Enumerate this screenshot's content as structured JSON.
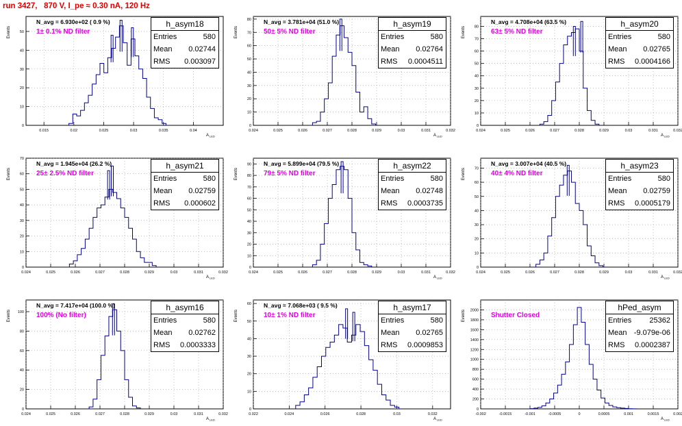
{
  "header": {
    "run_title": "run 3427,   870 V, I_pe ≈ 0.30 nA, 120 Hz"
  },
  "common": {
    "ylabel": "Events",
    "xlabel": "A",
    "xlabel_sub": "LED",
    "hist_color": "#00008b",
    "annot_color": "#e000e0",
    "title_color": "#e00000"
  },
  "chart_data": [
    {
      "type": "histogram",
      "name": "h_asym18",
      "entries": "580",
      "mean": "0.02744",
      "rms": "0.003097",
      "navg": "N_avg = 6.930e+02 ( 0.9 %)",
      "filter": "1± 0.1% ND filter",
      "xlim": [
        0.012,
        0.045
      ],
      "ylim": [
        0,
        58
      ],
      "xticks": [
        0.015,
        0.02,
        0.025,
        0.03,
        0.035,
        0.04
      ],
      "xtick_labels": [
        "0.015",
        "0.02",
        "0.025",
        "0.03",
        "0.035",
        "0.04"
      ],
      "yticks": [
        0,
        10,
        20,
        30,
        40,
        50
      ],
      "ytick_labels": [
        "0",
        "10",
        "20",
        "30",
        "40",
        "50"
      ],
      "bin_width": 0.00065,
      "bins": [
        [
          0.0195,
          1
        ],
        [
          0.02015,
          6
        ],
        [
          0.0208,
          5
        ],
        [
          0.02145,
          8
        ],
        [
          0.0221,
          12
        ],
        [
          0.02275,
          16
        ],
        [
          0.0234,
          22
        ],
        [
          0.02405,
          27
        ],
        [
          0.0247,
          33
        ],
        [
          0.02535,
          28
        ],
        [
          0.026,
          36
        ],
        [
          0.02665,
          41
        ],
        [
          0.0273,
          47
        ],
        [
          0.02795,
          53
        ],
        [
          0.0286,
          44
        ],
        [
          0.02925,
          32
        ],
        [
          0.0299,
          46
        ],
        [
          0.03055,
          37
        ],
        [
          0.0312,
          30
        ],
        [
          0.03185,
          25
        ],
        [
          0.0325,
          15
        ],
        [
          0.03315,
          9
        ],
        [
          0.0338,
          4
        ],
        [
          0.03445,
          3
        ],
        [
          0.0351,
          1
        ]
      ],
      "spikes": [
        [
          0.0264,
          48
        ],
        [
          0.0279,
          56
        ],
        [
          0.0298,
          52
        ]
      ]
    },
    {
      "type": "histogram",
      "name": "h_asym19",
      "entries": "580",
      "mean": "0.02764",
      "rms": "0.0004511",
      "navg": "N_avg = 3.781e+04 (51.0 %)",
      "filter": "50± 5% ND filter",
      "xlim": [
        0.024,
        0.032
      ],
      "ylim": [
        0,
        82
      ],
      "xticks": [
        0.024,
        0.025,
        0.026,
        0.027,
        0.028,
        0.029,
        0.03,
        0.031,
        0.032
      ],
      "xtick_labels": [
        "0.024",
        "0.025",
        "0.026",
        "0.027",
        "0.028",
        "0.029",
        "0.03",
        "0.031",
        "0.032"
      ],
      "yticks": [
        0,
        10,
        20,
        30,
        40,
        50,
        60,
        70,
        80
      ],
      "ytick_labels": [
        "0",
        "10",
        "20",
        "30",
        "40",
        "50",
        "60",
        "70",
        "80"
      ],
      "bin_width": 0.00016,
      "bins": [
        [
          0.02648,
          2
        ],
        [
          0.02664,
          3
        ],
        [
          0.0268,
          10
        ],
        [
          0.02696,
          20
        ],
        [
          0.02712,
          32
        ],
        [
          0.02728,
          52
        ],
        [
          0.02744,
          68
        ],
        [
          0.0276,
          75
        ],
        [
          0.02776,
          66
        ],
        [
          0.02792,
          55
        ],
        [
          0.02808,
          45
        ],
        [
          0.02824,
          25
        ],
        [
          0.0284,
          10
        ],
        [
          0.02856,
          14
        ],
        [
          0.02872,
          5
        ],
        [
          0.02888,
          1
        ]
      ],
      "spikes": [
        [
          0.02755,
          80
        ]
      ]
    },
    {
      "type": "histogram",
      "name": "h_asym20",
      "entries": "580",
      "mean": "0.02765",
      "rms": "0.0004166",
      "navg": "N_avg = 4.708e+04 (63.5 %)",
      "filter": "63± 5% ND filter",
      "xlim": [
        0.024,
        0.032
      ],
      "ylim": [
        0,
        88
      ],
      "xticks": [
        0.024,
        0.025,
        0.026,
        0.027,
        0.028,
        0.029,
        0.03,
        0.031,
        0.032
      ],
      "xtick_labels": [
        "0.024",
        "0.025",
        "0.026",
        "0.027",
        "0.028",
        "0.029",
        "0.03",
        "0.031",
        "0.032"
      ],
      "yticks": [
        0,
        10,
        20,
        30,
        40,
        50,
        60,
        70,
        80
      ],
      "ytick_labels": [
        "0",
        "10",
        "20",
        "30",
        "40",
        "50",
        "60",
        "70",
        "80"
      ],
      "bin_width": 0.00016,
      "bins": [
        [
          0.02648,
          1
        ],
        [
          0.02664,
          3
        ],
        [
          0.0268,
          8
        ],
        [
          0.02696,
          20
        ],
        [
          0.02712,
          35
        ],
        [
          0.02728,
          50
        ],
        [
          0.02744,
          65
        ],
        [
          0.0276,
          72
        ],
        [
          0.02776,
          75
        ],
        [
          0.02792,
          78
        ],
        [
          0.02808,
          60
        ],
        [
          0.02824,
          30
        ],
        [
          0.0284,
          12
        ],
        [
          0.02856,
          4
        ],
        [
          0.02872,
          1
        ]
      ],
      "spikes": [
        [
          0.0278,
          80
        ],
        [
          0.0281,
          84
        ]
      ]
    },
    {
      "type": "histogram",
      "name": "h_asym21",
      "entries": "580",
      "mean": "0.02759",
      "rms": "0.000602",
      "navg": "N_avg = 1.945e+04 (26.2 %)",
      "filter": "25± 2.5% ND filter",
      "xlim": [
        0.024,
        0.032
      ],
      "ylim": [
        0,
        70
      ],
      "xticks": [
        0.024,
        0.025,
        0.026,
        0.027,
        0.028,
        0.029,
        0.03,
        0.031,
        0.032
      ],
      "xtick_labels": [
        "0.024",
        "0.025",
        "0.026",
        "0.027",
        "0.028",
        "0.029",
        "0.03",
        "0.031",
        "0.032"
      ],
      "yticks": [
        0,
        10,
        20,
        30,
        40,
        50,
        60,
        70
      ],
      "ytick_labels": [
        "0",
        "10",
        "20",
        "30",
        "40",
        "50",
        "60",
        "70"
      ],
      "bin_width": 0.00016,
      "bins": [
        [
          0.02584,
          2
        ],
        [
          0.026,
          4
        ],
        [
          0.02616,
          8
        ],
        [
          0.02632,
          12
        ],
        [
          0.02648,
          18
        ],
        [
          0.02664,
          25
        ],
        [
          0.0268,
          32
        ],
        [
          0.02696,
          38
        ],
        [
          0.02712,
          40
        ],
        [
          0.02728,
          45
        ],
        [
          0.02744,
          50
        ],
        [
          0.0276,
          48
        ],
        [
          0.02776,
          44
        ],
        [
          0.02792,
          38
        ],
        [
          0.02808,
          32
        ],
        [
          0.02824,
          25
        ],
        [
          0.0284,
          18
        ],
        [
          0.02856,
          10
        ],
        [
          0.02872,
          6
        ],
        [
          0.02888,
          3
        ],
        [
          0.02904,
          3
        ],
        [
          0.0292,
          1
        ]
      ],
      "spikes": [
        [
          0.02735,
          62
        ],
        [
          0.0275,
          65
        ]
      ]
    },
    {
      "type": "histogram",
      "name": "h_asym22",
      "entries": "580",
      "mean": "0.02748",
      "rms": "0.0003735",
      "navg": "N_avg = 5.899e+04 (79.5 %)",
      "filter": "79± 5% ND filter",
      "xlim": [
        0.024,
        0.032
      ],
      "ylim": [
        0,
        95
      ],
      "xticks": [
        0.024,
        0.025,
        0.026,
        0.027,
        0.028,
        0.029,
        0.03,
        0.031,
        0.032
      ],
      "xtick_labels": [
        "0.024",
        "0.025",
        "0.026",
        "0.027",
        "0.028",
        "0.029",
        "0.03",
        "0.031",
        "0.032"
      ],
      "yticks": [
        0,
        10,
        20,
        30,
        40,
        50,
        60,
        70,
        80,
        90
      ],
      "ytick_labels": [
        "0",
        "10",
        "20",
        "30",
        "40",
        "50",
        "60",
        "70",
        "80",
        "90"
      ],
      "bin_width": 0.00016,
      "bins": [
        [
          0.02648,
          2
        ],
        [
          0.02664,
          6
        ],
        [
          0.0268,
          20
        ],
        [
          0.02696,
          38
        ],
        [
          0.02712,
          60
        ],
        [
          0.02728,
          72
        ],
        [
          0.02744,
          85
        ],
        [
          0.0276,
          88
        ],
        [
          0.02776,
          85
        ],
        [
          0.02792,
          60
        ],
        [
          0.02808,
          30
        ],
        [
          0.02824,
          15
        ],
        [
          0.0284,
          4
        ],
        [
          0.02856,
          2
        ],
        [
          0.02872,
          1
        ]
      ],
      "spikes": [
        [
          0.0276,
          92
        ]
      ]
    },
    {
      "type": "histogram",
      "name": "h_asym23",
      "entries": "580",
      "mean": "0.02759",
      "rms": "0.0005179",
      "navg": "N_avg = 3.007e+04 (40.5 %)",
      "filter": "40± 4% ND filter",
      "xlim": [
        0.024,
        0.032
      ],
      "ylim": [
        0,
        77
      ],
      "xticks": [
        0.024,
        0.025,
        0.026,
        0.027,
        0.028,
        0.029,
        0.03,
        0.031,
        0.032
      ],
      "xtick_labels": [
        "0.024",
        "0.025",
        "0.026",
        "0.027",
        "0.028",
        "0.029",
        "0.03",
        "0.031",
        "0.032"
      ],
      "yticks": [
        0,
        10,
        20,
        30,
        40,
        50,
        60,
        70
      ],
      "ytick_labels": [
        "0",
        "10",
        "20",
        "30",
        "40",
        "50",
        "60",
        "70"
      ],
      "bin_width": 0.00016,
      "bins": [
        [
          0.02632,
          2
        ],
        [
          0.02648,
          5
        ],
        [
          0.02664,
          10
        ],
        [
          0.0268,
          22
        ],
        [
          0.02696,
          35
        ],
        [
          0.02712,
          50
        ],
        [
          0.02728,
          58
        ],
        [
          0.02744,
          65
        ],
        [
          0.0276,
          68
        ],
        [
          0.02776,
          60
        ],
        [
          0.02792,
          45
        ],
        [
          0.02808,
          40
        ],
        [
          0.02824,
          30
        ],
        [
          0.0284,
          15
        ],
        [
          0.02856,
          8
        ],
        [
          0.02872,
          3
        ],
        [
          0.02888,
          1
        ]
      ],
      "spikes": [
        [
          0.02755,
          72
        ]
      ]
    },
    {
      "type": "histogram",
      "name": "h_asym16",
      "entries": "580",
      "mean": "0.02762",
      "rms": "0.0003333",
      "navg": "N_avg = 7.417e+04 (100.0 %)",
      "filter": "100% (No filter)",
      "xlim": [
        0.024,
        0.032
      ],
      "ylim": [
        0,
        112
      ],
      "xticks": [
        0.024,
        0.025,
        0.026,
        0.027,
        0.028,
        0.029,
        0.03,
        0.031,
        0.032
      ],
      "xtick_labels": [
        "0.024",
        "0.025",
        "0.026",
        "0.027",
        "0.028",
        "0.029",
        "0.03",
        "0.031",
        "0.032"
      ],
      "yticks": [
        0,
        20,
        40,
        60,
        80,
        100
      ],
      "ytick_labels": [
        "0",
        "20",
        "40",
        "60",
        "80",
        "100"
      ],
      "bin_width": 0.00016,
      "bins": [
        [
          0.02664,
          2
        ],
        [
          0.0268,
          10
        ],
        [
          0.02696,
          30
        ],
        [
          0.02712,
          55
        ],
        [
          0.02728,
          75
        ],
        [
          0.02744,
          95
        ],
        [
          0.0276,
          102
        ],
        [
          0.02776,
          80
        ],
        [
          0.02792,
          60
        ],
        [
          0.02808,
          30
        ],
        [
          0.02824,
          12
        ],
        [
          0.0284,
          3
        ],
        [
          0.02856,
          1
        ]
      ],
      "spikes": [
        [
          0.02755,
          108
        ]
      ]
    },
    {
      "type": "histogram",
      "name": "h_asym17",
      "entries": "580",
      "mean": "0.02765",
      "rms": "0.0009853",
      "navg": "N_avg = 7.068e+03 ( 9.5 %)",
      "filter": "10± 1% ND filter",
      "xlim": [
        0.022,
        0.033
      ],
      "ylim": [
        0,
        62
      ],
      "xticks": [
        0.022,
        0.024,
        0.026,
        0.028,
        0.03,
        0.032
      ],
      "xtick_labels": [
        "0.022",
        "0.024",
        "0.026",
        "0.028",
        "0.03",
        "0.032"
      ],
      "yticks": [
        0,
        10,
        20,
        30,
        40,
        50,
        60
      ],
      "ytick_labels": [
        "0",
        "10",
        "20",
        "30",
        "40",
        "50",
        "60"
      ],
      "bin_width": 0.00024,
      "bins": [
        [
          0.02448,
          2
        ],
        [
          0.02472,
          4
        ],
        [
          0.02496,
          8
        ],
        [
          0.0252,
          12
        ],
        [
          0.02544,
          18
        ],
        [
          0.02568,
          24
        ],
        [
          0.02592,
          30
        ],
        [
          0.02616,
          35
        ],
        [
          0.0264,
          38
        ],
        [
          0.02664,
          42
        ],
        [
          0.02688,
          48
        ],
        [
          0.02712,
          46
        ],
        [
          0.02736,
          38
        ],
        [
          0.0276,
          42
        ],
        [
          0.02784,
          48
        ],
        [
          0.02808,
          44
        ],
        [
          0.02832,
          36
        ],
        [
          0.02856,
          28
        ],
        [
          0.0288,
          22
        ],
        [
          0.02904,
          14
        ],
        [
          0.02928,
          8
        ],
        [
          0.02952,
          5
        ],
        [
          0.02976,
          2
        ],
        [
          0.03,
          1
        ]
      ],
      "spikes": [
        [
          0.0272,
          57
        ],
        [
          0.0276,
          55
        ]
      ]
    },
    {
      "type": "histogram",
      "name": "hPed_asym",
      "entries": "25362",
      "mean": "-9.079e-06",
      "rms": "0.0002387",
      "navg": "",
      "filter": "Shutter Closed",
      "xlim": [
        -0.002,
        0.002
      ],
      "ylim": [
        0,
        2200
      ],
      "xticks": [
        -0.002,
        -0.0015,
        -0.001,
        -0.0005,
        0,
        0.0005,
        0.001,
        0.0015,
        0.002
      ],
      "xtick_labels": [
        "-0.002",
        "-0.0015",
        "-0.001",
        "-0.0005",
        "0",
        "0.0005",
        "0.001",
        "0.0015",
        "0.002"
      ],
      "yticks": [
        0,
        200,
        400,
        600,
        800,
        1000,
        1200,
        1400,
        1600,
        1800,
        2000
      ],
      "ytick_labels": [
        "0",
        "200",
        "400",
        "600",
        "800",
        "1000",
        "1200",
        "1400",
        "1600",
        "1800",
        "2000"
      ],
      "bin_width": 8e-05,
      "bins": [
        [
          -0.00096,
          5
        ],
        [
          -0.00088,
          15
        ],
        [
          -0.0008,
          30
        ],
        [
          -0.00072,
          60
        ],
        [
          -0.00064,
          120
        ],
        [
          -0.00056,
          200
        ],
        [
          -0.00048,
          320
        ],
        [
          -0.0004,
          480
        ],
        [
          -0.00032,
          700
        ],
        [
          -0.00024,
          950
        ],
        [
          -0.00016,
          1300
        ],
        [
          -8e-05,
          1700
        ],
        [
          0,
          2050
        ],
        [
          8e-05,
          1750
        ],
        [
          0.00016,
          1300
        ],
        [
          0.00024,
          900
        ],
        [
          0.00032,
          600
        ],
        [
          0.0004,
          380
        ],
        [
          0.00048,
          220
        ],
        [
          0.00056,
          120
        ],
        [
          0.00064,
          70
        ],
        [
          0.00072,
          40
        ],
        [
          0.0008,
          25
        ],
        [
          0.00088,
          15
        ],
        [
          0.00096,
          8
        ],
        [
          0.00104,
          4
        ],
        [
          0.00112,
          2
        ]
      ],
      "spikes": []
    }
  ]
}
